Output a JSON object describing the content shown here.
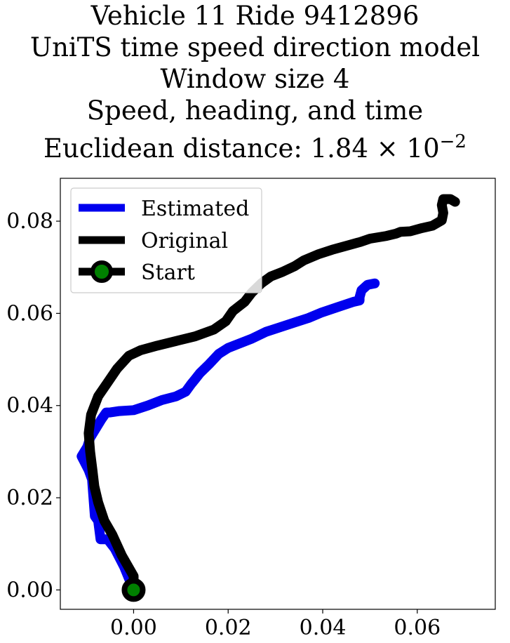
{
  "chart_data": {
    "type": "line",
    "title_lines": [
      "Vehicle 11 Ride 9412896",
      "UniTS time speed direction model",
      "Window size 4",
      "Speed, heading, and time",
      "Euclidean distance: 1.84 × 10",
      "−2"
    ],
    "xlim": [
      -0.0155,
      0.0765
    ],
    "ylim": [
      -0.0042,
      0.0893
    ],
    "x_ticks": [
      0.0,
      0.02,
      0.04,
      0.06
    ],
    "x_tick_labels": [
      "0.00",
      "0.02",
      "0.04",
      "0.06"
    ],
    "y_ticks": [
      0.0,
      0.02,
      0.04,
      0.06,
      0.08
    ],
    "y_tick_labels": [
      "0.00",
      "0.02",
      "0.04",
      "0.06",
      "0.08"
    ],
    "grid": false,
    "legend_position": "top-left",
    "series": [
      {
        "name": "Estimated",
        "color": "#0000ee",
        "points": [
          [
            0.0,
            0.0
          ],
          [
            -0.002,
            0.005
          ],
          [
            -0.004,
            0.009
          ],
          [
            -0.0055,
            0.011
          ],
          [
            -0.007,
            0.011
          ],
          [
            -0.0075,
            0.015
          ],
          [
            -0.0082,
            0.016
          ],
          [
            -0.0085,
            0.02
          ],
          [
            -0.0088,
            0.024
          ],
          [
            -0.0095,
            0.026
          ],
          [
            -0.011,
            0.029
          ],
          [
            -0.0098,
            0.031
          ],
          [
            -0.0092,
            0.033
          ],
          [
            -0.008,
            0.035
          ],
          [
            -0.0068,
            0.037
          ],
          [
            -0.0058,
            0.0385
          ],
          [
            -0.005,
            0.0385
          ],
          [
            -0.003,
            0.0388
          ],
          [
            0.0,
            0.039
          ],
          [
            0.003,
            0.04
          ],
          [
            0.006,
            0.0412
          ],
          [
            0.009,
            0.042
          ],
          [
            0.011,
            0.043
          ],
          [
            0.0122,
            0.0447
          ],
          [
            0.013,
            0.0457
          ],
          [
            0.014,
            0.047
          ],
          [
            0.016,
            0.049
          ],
          [
            0.018,
            0.0512
          ],
          [
            0.02,
            0.0525
          ],
          [
            0.022,
            0.0533
          ],
          [
            0.025,
            0.0545
          ],
          [
            0.028,
            0.056
          ],
          [
            0.031,
            0.057
          ],
          [
            0.034,
            0.058
          ],
          [
            0.037,
            0.059
          ],
          [
            0.0398,
            0.0602
          ],
          [
            0.043,
            0.0613
          ],
          [
            0.0465,
            0.0625
          ],
          [
            0.0478,
            0.0628
          ],
          [
            0.0478,
            0.0635
          ],
          [
            0.0482,
            0.065
          ],
          [
            0.0495,
            0.0662
          ],
          [
            0.051,
            0.0665
          ]
        ]
      },
      {
        "name": "Original",
        "color": "#000000",
        "points": [
          [
            0.0,
            0.0
          ],
          [
            0.0,
            0.003
          ],
          [
            -0.0025,
            0.0075
          ],
          [
            -0.0045,
            0.012
          ],
          [
            -0.0062,
            0.015
          ],
          [
            -0.0075,
            0.019
          ],
          [
            -0.0083,
            0.0225
          ],
          [
            -0.0087,
            0.026
          ],
          [
            -0.0092,
            0.03
          ],
          [
            -0.0095,
            0.034
          ],
          [
            -0.009,
            0.038
          ],
          [
            -0.0075,
            0.042
          ],
          [
            -0.0055,
            0.045
          ],
          [
            -0.0035,
            0.048
          ],
          [
            -0.001,
            0.0508
          ],
          [
            0.0015,
            0.052
          ],
          [
            0.005,
            0.053
          ],
          [
            0.009,
            0.054
          ],
          [
            0.013,
            0.055
          ],
          [
            0.017,
            0.0565
          ],
          [
            0.0195,
            0.0583
          ],
          [
            0.021,
            0.0605
          ],
          [
            0.022,
            0.0613
          ],
          [
            0.0235,
            0.0625
          ],
          [
            0.025,
            0.0645
          ],
          [
            0.027,
            0.0665
          ],
          [
            0.029,
            0.068
          ],
          [
            0.0315,
            0.069
          ],
          [
            0.034,
            0.0702
          ],
          [
            0.036,
            0.0715
          ],
          [
            0.039,
            0.0728
          ],
          [
            0.042,
            0.0738
          ],
          [
            0.0455,
            0.0748
          ],
          [
            0.048,
            0.0755
          ],
          [
            0.05,
            0.0762
          ],
          [
            0.0535,
            0.0768
          ],
          [
            0.0555,
            0.0773
          ],
          [
            0.0565,
            0.0777
          ],
          [
            0.0585,
            0.0778
          ],
          [
            0.061,
            0.0785
          ],
          [
            0.0632,
            0.079
          ],
          [
            0.0652,
            0.0802
          ],
          [
            0.0655,
            0.0818
          ],
          [
            0.0652,
            0.0835
          ],
          [
            0.0655,
            0.0848
          ],
          [
            0.067,
            0.0848
          ],
          [
            0.068,
            0.0842
          ]
        ]
      }
    ],
    "start_marker": {
      "name": "Start",
      "point": [
        0.0,
        0.0
      ],
      "face_color": "#008000",
      "edge_color": "#000000"
    }
  }
}
